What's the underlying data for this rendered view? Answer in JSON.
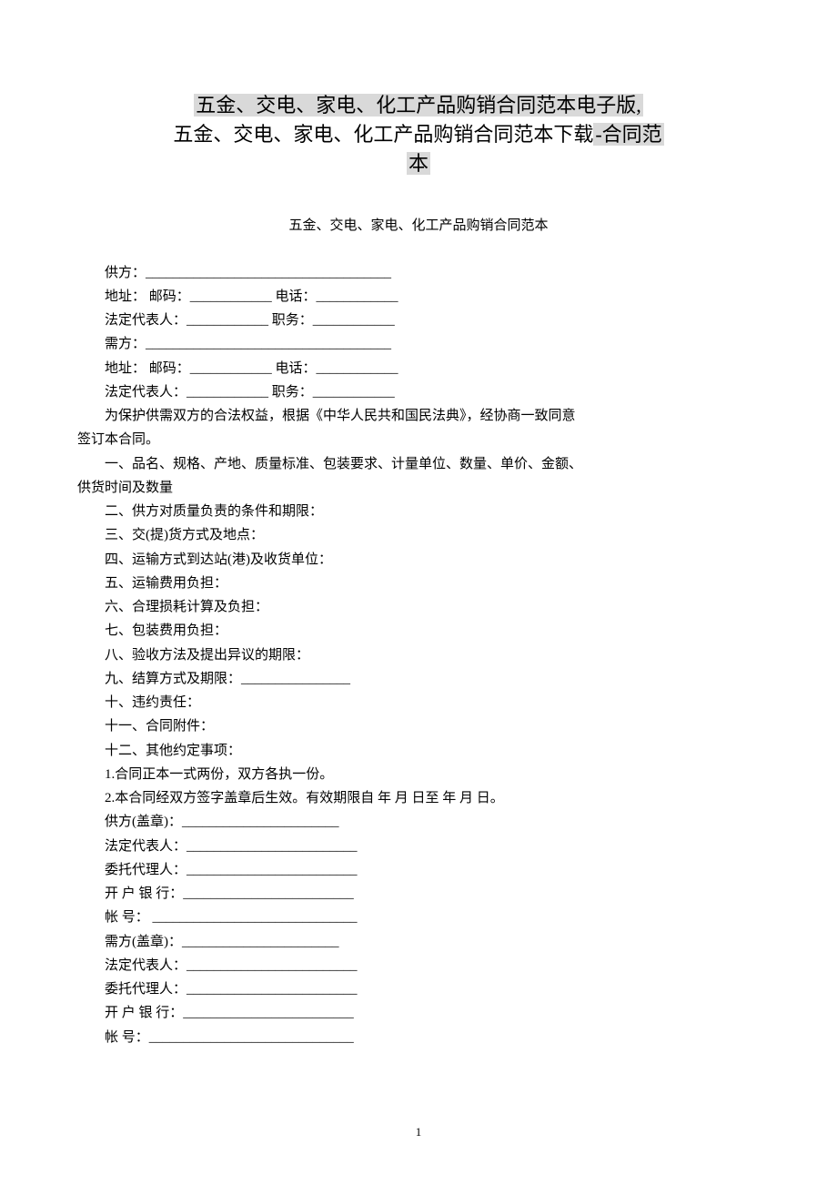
{
  "title": {
    "line1_hl": "五金、交电、家电、化工产品购销合同范本电子版,",
    "line2_prefix": "五金、交电、家电、化工产品购销合同范本下载",
    "line2_hl": "-合同范",
    "line3_hl": "本"
  },
  "subtitle": "五金、交电、家电、化工产品购销合同范本",
  "lines": {
    "l1": "供方：____________________________________",
    "l2": "地址：  邮码：____________ 电话：____________",
    "l3": "法定代表人：____________ 职务：____________",
    "l4": "需方：____________________________________",
    "l5": "地址：  邮码：____________ 电话：____________",
    "l6": "法定代表人：____________ 职务：____________",
    "l7": "为保护供需双方的合法权益，根据《中华人民共和国民法典》，经协商一致同意",
    "l7b": "签订本合同。",
    "l8": "一、品名、规格、产地、质量标准、包装要求、计量单位、数量、单价、金额、",
    "l8b": "供货时间及数量",
    "l9": "二、供方对质量负责的条件和期限：",
    "l10": "三、交(提)货方式及地点：",
    "l11": "四、运输方式到达站(港)及收货单位：",
    "l12": "五、运输费用负担：",
    "l13": "六、合理损耗计算及负担：",
    "l14": "七、包装费用负担：",
    "l15": "八、验收方法及提出异议的期限：",
    "l16": "九、结算方式及期限：________________",
    "l17": "十、违约责任：",
    "l18": "十一、合同附件：",
    "l19": "十二、其他约定事项：",
    "l20": "1.合同正本一式两份，双方各执一份。",
    "l21": "2.本合同经双方签字盖章后生效。有效期限自 年 月 日至 年 月 日。",
    "l22": "供方(盖章)：_______________________",
    "l23": "法定代表人：_________________________",
    "l24": "委托代理人：_________________________",
    "l25": "开 户 银 行：_________________________",
    "l26": "帐 号： ______________________________",
    "l27": "需方(盖章)：_______________________",
    "l28": "法定代表人：_________________________",
    "l29": "委托代理人：_________________________",
    "l30": "开 户 银 行：_________________________",
    "l31": "帐 号：______________________________"
  },
  "page_number": "1"
}
